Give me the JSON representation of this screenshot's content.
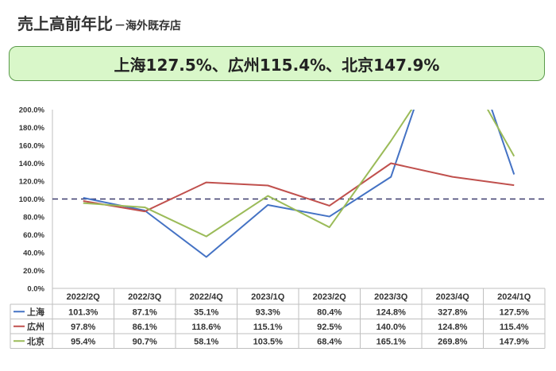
{
  "header": {
    "title": "売上高前年比",
    "subtitle": "－海外既存店"
  },
  "banner": {
    "text": "上海127.5%、広州115.4%、北京147.9%"
  },
  "chart_data": {
    "type": "line",
    "categories": [
      "2022/2Q",
      "2022/3Q",
      "2022/4Q",
      "2023/1Q",
      "2023/2Q",
      "2023/3Q",
      "2023/4Q",
      "2024/1Q"
    ],
    "ylim": [
      0,
      200
    ],
    "yticks": [
      "0.0%",
      "20.0%",
      "40.0%",
      "60.0%",
      "80.0%",
      "100.0%",
      "120.0%",
      "140.0%",
      "160.0%",
      "180.0%",
      "200.0%"
    ],
    "reference_line": 100,
    "grid": false,
    "legend": "data-table",
    "series": [
      {
        "name": "上海",
        "color": "#4472c4",
        "values": [
          101.3,
          87.1,
          35.1,
          93.3,
          80.4,
          124.8,
          327.8,
          127.5
        ],
        "labels": [
          "101.3%",
          "87.1%",
          "35.1%",
          "93.3%",
          "80.4%",
          "124.8%",
          "327.8%",
          "127.5%"
        ]
      },
      {
        "name": "広州",
        "color": "#c0504d",
        "values": [
          97.8,
          86.1,
          118.6,
          115.1,
          92.5,
          140.0,
          124.8,
          115.4
        ],
        "labels": [
          "97.8%",
          "86.1%",
          "118.6%",
          "115.1%",
          "92.5%",
          "140.0%",
          "124.8%",
          "115.4%"
        ]
      },
      {
        "name": "北京",
        "color": "#9bbb59",
        "values": [
          95.4,
          90.7,
          58.1,
          103.5,
          68.4,
          165.1,
          269.8,
          147.9
        ],
        "labels": [
          "95.4%",
          "90.7%",
          "58.1%",
          "103.5%",
          "68.4%",
          "165.1%",
          "269.8%",
          "147.9%"
        ]
      }
    ]
  }
}
